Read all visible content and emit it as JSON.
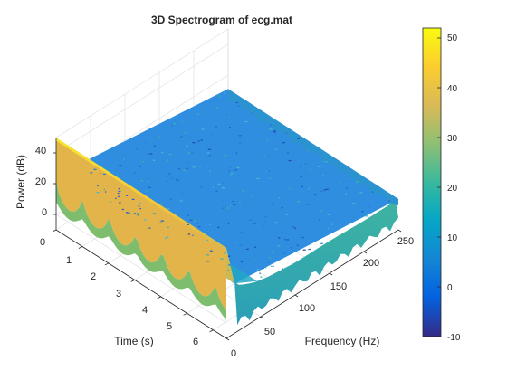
{
  "chart_data": {
    "type": "surface",
    "title": "3D Spectrogram of ecg.mat",
    "xlabel": "Frequency (Hz)",
    "ylabel": "Time (s)",
    "zlabel": "Power (dB)",
    "xlim": [
      0,
      250
    ],
    "ylim": [
      0,
      6.5
    ],
    "zlim": [
      -10,
      50
    ],
    "x_ticks": [
      "0",
      "50",
      "100",
      "150",
      "200",
      "250"
    ],
    "y_ticks": [
      "0",
      "1",
      "2",
      "3",
      "4",
      "5",
      "6"
    ],
    "z_ticks": [
      "0",
      "20",
      "40"
    ],
    "grid": true,
    "colormap": "parula",
    "colorbar": {
      "range": [
        -10,
        52
      ],
      "ticks": [
        "-10",
        "0",
        "10",
        "20",
        "30",
        "40",
        "50"
      ]
    },
    "surface_profile": {
      "frequency_hz": [
        0,
        2,
        5,
        10,
        15,
        20,
        30,
        40,
        60,
        80,
        100,
        150,
        200,
        250
      ],
      "typical_power_db": [
        50,
        47,
        36,
        26,
        22,
        20,
        18,
        16,
        14,
        13,
        12,
        12,
        11,
        11
      ]
    },
    "colors": {
      "low": "#352a87",
      "mid": "#1fb8a8",
      "high": "#f9fb0e"
    }
  }
}
